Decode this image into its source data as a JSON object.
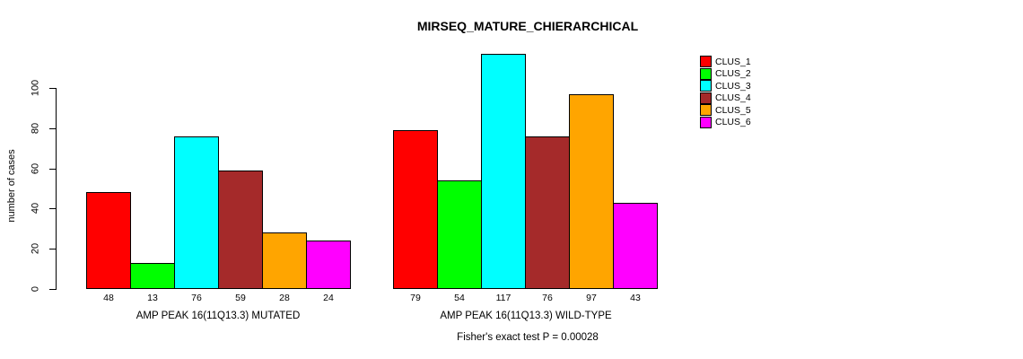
{
  "chart_data": {
    "type": "bar",
    "title": "MIRSEQ_MATURE_CHIERARCHICAL",
    "ylabel": "number of cases",
    "xlabel": "",
    "ylim": [
      0,
      100
    ],
    "yticks": [
      0,
      20,
      40,
      60,
      80,
      100
    ],
    "grid": false,
    "legend_position": "top-right",
    "legend": [
      {
        "label": "CLUS_1",
        "color": "#FF0000"
      },
      {
        "label": "CLUS_2",
        "color": "#00FF00"
      },
      {
        "label": "CLUS_3",
        "color": "#00FFFF"
      },
      {
        "label": "CLUS_4",
        "color": "#A52A2A"
      },
      {
        "label": "CLUS_5",
        "color": "#FFA500"
      },
      {
        "label": "CLUS_6",
        "color": "#FF00FF"
      }
    ],
    "groups": [
      {
        "label": "AMP PEAK 16(11Q13.3) MUTATED",
        "values": [
          48,
          13,
          76,
          59,
          28,
          24
        ]
      },
      {
        "label": "AMP PEAK 16(11Q13.3) WILD-TYPE",
        "values": [
          79,
          54,
          117,
          76,
          97,
          43
        ]
      }
    ],
    "annotation": "Fisher's exact test P = 0.00028"
  }
}
